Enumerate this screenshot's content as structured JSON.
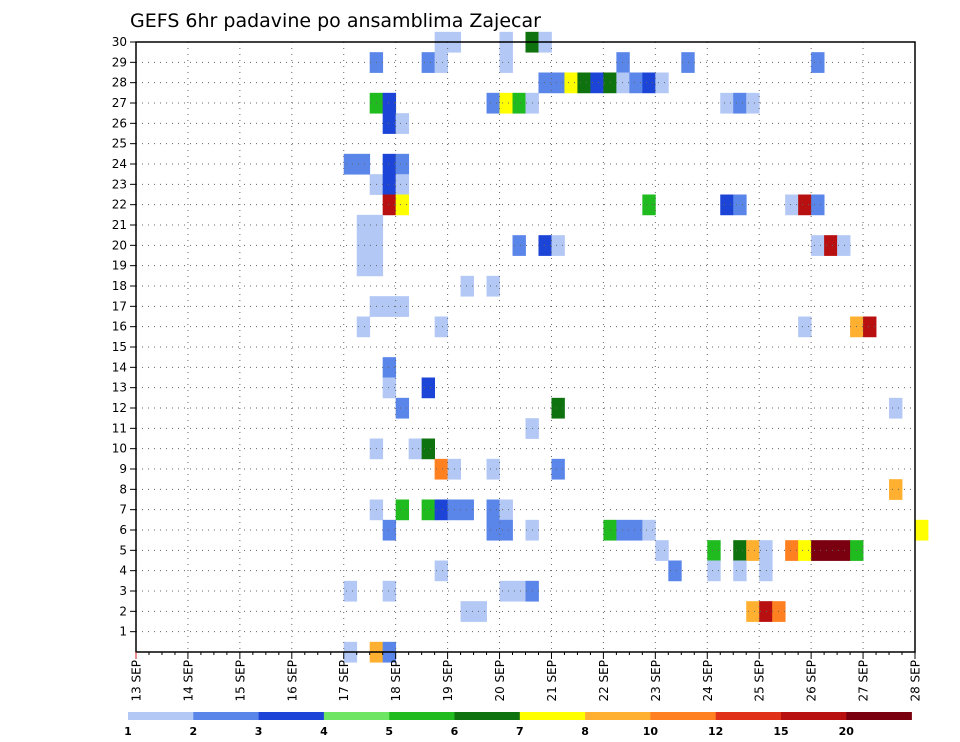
{
  "chart_data": {
    "type": "heatmap",
    "title": "GEFS 6hr padavine po ansamblima Zajecar",
    "x_tick_labels": [
      "13 SEP",
      "14 SEP",
      "15 SEP",
      "16 SEP",
      "17 SEP",
      "18 SEP",
      "19 SEP",
      "20 SEP",
      "21 SEP",
      "22 SEP",
      "23 SEP",
      "24 SEP",
      "25 SEP",
      "26 SEP",
      "27 SEP",
      "28 SEP"
    ],
    "x_unit": "6-hour step from 13 SEP 00Z (4 steps per day)",
    "y_tick_labels": [
      "1",
      "2",
      "3",
      "4",
      "5",
      "6",
      "7",
      "8",
      "9",
      "10",
      "11",
      "12",
      "13",
      "14",
      "15",
      "16",
      "17",
      "18",
      "19",
      "20",
      "21",
      "22",
      "23",
      "24",
      "25",
      "26",
      "27",
      "28",
      "29",
      "30"
    ],
    "ylim": [
      0,
      30
    ],
    "grid": true,
    "legend": {
      "position": "bottom",
      "labels": [
        "1",
        "2",
        "3",
        "4",
        "5",
        "6",
        "7",
        "8",
        "10",
        "12",
        "15",
        "20"
      ],
      "colors": [
        "#b3c8f5",
        "#5a86ea",
        "#1c45d8",
        "#6ee664",
        "#1fbb1f",
        "#0e720e",
        "#ffff00",
        "#ffb030",
        "#ff8020",
        "#e03018",
        "#b81010",
        "#7a0010"
      ]
    },
    "cells": [
      [
        23,
        30,
        1
      ],
      [
        24,
        30,
        1
      ],
      [
        28,
        30,
        1
      ],
      [
        28,
        29,
        1
      ],
      [
        30,
        30,
        6
      ],
      [
        31,
        30,
        1
      ],
      [
        18,
        29,
        2
      ],
      [
        22,
        29,
        2
      ],
      [
        23,
        29,
        1
      ],
      [
        37,
        29,
        2
      ],
      [
        42,
        29,
        2
      ],
      [
        52,
        29,
        2
      ],
      [
        31,
        28,
        2
      ],
      [
        32,
        28,
        2
      ],
      [
        33,
        28,
        7
      ],
      [
        34,
        28,
        6
      ],
      [
        35,
        28,
        3
      ],
      [
        36,
        28,
        6
      ],
      [
        37,
        28,
        1
      ],
      [
        38,
        28,
        2
      ],
      [
        39,
        28,
        3
      ],
      [
        40,
        28,
        1
      ],
      [
        18,
        27,
        5
      ],
      [
        19,
        27,
        3
      ],
      [
        27,
        27,
        2
      ],
      [
        28,
        27,
        7
      ],
      [
        29,
        27,
        5
      ],
      [
        30,
        27,
        1
      ],
      [
        45,
        27,
        1
      ],
      [
        46,
        27,
        2
      ],
      [
        47,
        27,
        1
      ],
      [
        19,
        26,
        3
      ],
      [
        20,
        26,
        1
      ],
      [
        16,
        24,
        2
      ],
      [
        17,
        24,
        2
      ],
      [
        19,
        24,
        3
      ],
      [
        20,
        24,
        2
      ],
      [
        18,
        23,
        1
      ],
      [
        19,
        23,
        3
      ],
      [
        20,
        23,
        1
      ],
      [
        19,
        22,
        15
      ],
      [
        20,
        22,
        7
      ],
      [
        39,
        22,
        5
      ],
      [
        45,
        22,
        3
      ],
      [
        46,
        22,
        2
      ],
      [
        50,
        22,
        1
      ],
      [
        51,
        22,
        15
      ],
      [
        52,
        22,
        2
      ],
      [
        17,
        21,
        1
      ],
      [
        18,
        21,
        1
      ],
      [
        17,
        20,
        1
      ],
      [
        18,
        20,
        1
      ],
      [
        29,
        20,
        2
      ],
      [
        31,
        20,
        3
      ],
      [
        32,
        20,
        1
      ],
      [
        52,
        20,
        1
      ],
      [
        53,
        20,
        15
      ],
      [
        54,
        20,
        1
      ],
      [
        17,
        19,
        1
      ],
      [
        18,
        19,
        1
      ],
      [
        25,
        18,
        1
      ],
      [
        27,
        18,
        1
      ],
      [
        18,
        17,
        1
      ],
      [
        19,
        17,
        1
      ],
      [
        20,
        17,
        1
      ],
      [
        17,
        16,
        1
      ],
      [
        23,
        16,
        1
      ],
      [
        51,
        16,
        1
      ],
      [
        55,
        16,
        8
      ],
      [
        56,
        16,
        15
      ],
      [
        19,
        14,
        2
      ],
      [
        19,
        13,
        1
      ],
      [
        22,
        13,
        3
      ],
      [
        20,
        12,
        2
      ],
      [
        32,
        12,
        6
      ],
      [
        58,
        12,
        1
      ],
      [
        30,
        11,
        1
      ],
      [
        18,
        10,
        1
      ],
      [
        21,
        10,
        1
      ],
      [
        22,
        10,
        6
      ],
      [
        23,
        9,
        10
      ],
      [
        24,
        9,
        1
      ],
      [
        27,
        9,
        1
      ],
      [
        32,
        9,
        2
      ],
      [
        58,
        8,
        8
      ],
      [
        18,
        7,
        1
      ],
      [
        20,
        7,
        5
      ],
      [
        22,
        7,
        5
      ],
      [
        23,
        7,
        3
      ],
      [
        24,
        7,
        2
      ],
      [
        25,
        7,
        2
      ],
      [
        27,
        7,
        2
      ],
      [
        28,
        7,
        1
      ],
      [
        19,
        6,
        2
      ],
      [
        27,
        6,
        2
      ],
      [
        28,
        6,
        2
      ],
      [
        30,
        6,
        1
      ],
      [
        36,
        6,
        5
      ],
      [
        37,
        6,
        2
      ],
      [
        38,
        6,
        2
      ],
      [
        39,
        6,
        1
      ],
      [
        60,
        6,
        7
      ],
      [
        40,
        5,
        1
      ],
      [
        44,
        5,
        5
      ],
      [
        46,
        5,
        6
      ],
      [
        47,
        5,
        8
      ],
      [
        48,
        5,
        1
      ],
      [
        50,
        5,
        10
      ],
      [
        51,
        5,
        7
      ],
      [
        52,
        5,
        20
      ],
      [
        53,
        5,
        20
      ],
      [
        54,
        5,
        20
      ],
      [
        55,
        5,
        5
      ],
      [
        23,
        4,
        1
      ],
      [
        41,
        4,
        2
      ],
      [
        44,
        4,
        1
      ],
      [
        46,
        4,
        1
      ],
      [
        48,
        4,
        1
      ],
      [
        16,
        3,
        1
      ],
      [
        19,
        3,
        1
      ],
      [
        28,
        3,
        1
      ],
      [
        29,
        3,
        1
      ],
      [
        30,
        3,
        2
      ],
      [
        25,
        2,
        1
      ],
      [
        26,
        2,
        1
      ],
      [
        47,
        2,
        8
      ],
      [
        48,
        2,
        15
      ],
      [
        49,
        2,
        10
      ],
      [
        16,
        0,
        1
      ],
      [
        18,
        0,
        8
      ],
      [
        19,
        0,
        2
      ]
    ]
  }
}
